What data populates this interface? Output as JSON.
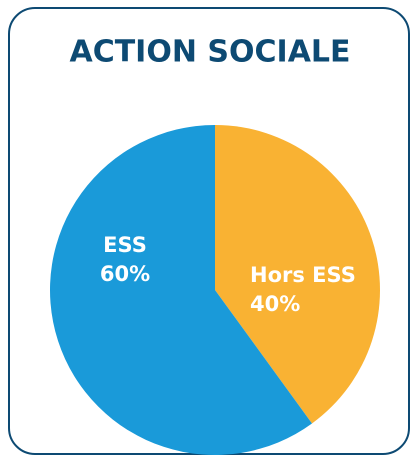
{
  "chart_data": {
    "type": "pie",
    "title": "ACTION SOCIALE",
    "categories": [
      "ESS",
      "Hors ESS"
    ],
    "values": [
      60,
      40
    ],
    "value_labels": [
      "60%",
      "40%"
    ],
    "colors": [
      "#1a9ad9",
      "#f9b233"
    ]
  }
}
